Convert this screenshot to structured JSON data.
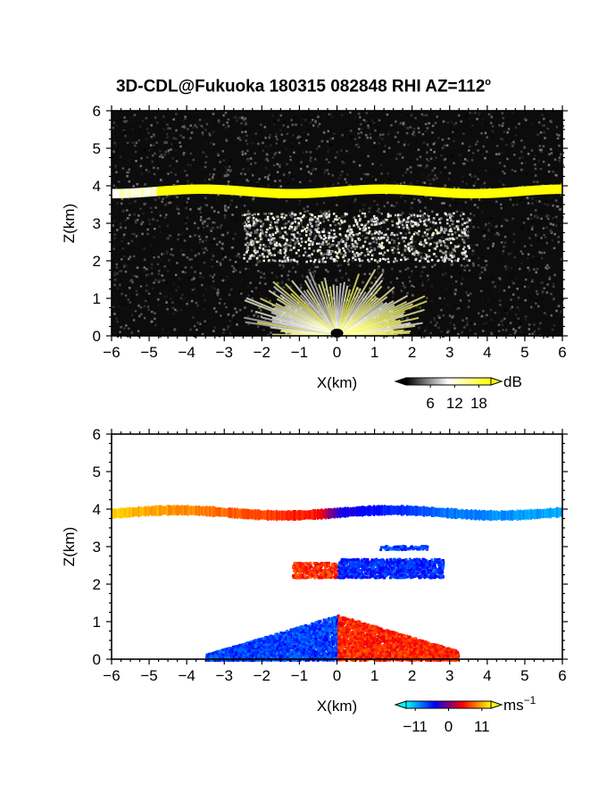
{
  "title": "3D-CDL@Fukuoka 180315 082848 RHI AZ=112",
  "title_superscript": "o",
  "chart_data": [
    {
      "type": "heatmap",
      "name": "reflectivity",
      "xlabel": "X(km)",
      "ylabel": "Z(km)",
      "xlim": [
        -6,
        6
      ],
      "ylim": [
        0,
        6
      ],
      "xticks": [
        "−6",
        "−5",
        "−4",
        "−3",
        "−2",
        "−1",
        "0",
        "1",
        "2",
        "3",
        "4",
        "5",
        "6"
      ],
      "yticks": [
        "0",
        "1",
        "2",
        "3",
        "4",
        "5",
        "6"
      ],
      "colorbar": {
        "unit": "dB",
        "ticks": [
          "6",
          "12",
          "18"
        ],
        "tick_values": [
          6,
          12,
          18
        ],
        "range": [
          0,
          21
        ],
        "colors": [
          "#000000",
          "#ffffff",
          "#ffff00"
        ]
      },
      "features": [
        {
          "kind": "cloud_layer",
          "x": [
            -6,
            6
          ],
          "z_center": 3.85,
          "thickness": 0.25,
          "strong_from_x": -4.8,
          "color": "#ffff00"
        },
        {
          "kind": "faint_layer",
          "x": [
            -2.5,
            3.5
          ],
          "z": [
            2.0,
            3.3
          ]
        },
        {
          "kind": "ground_clutter_fan",
          "origin": [
            0,
            0
          ],
          "radius_km": 3.5
        }
      ]
    },
    {
      "type": "heatmap",
      "name": "doppler_velocity",
      "xlabel": "X(km)",
      "ylabel": "Z(km)",
      "xlim": [
        -6,
        6
      ],
      "ylim": [
        0,
        6
      ],
      "xticks": [
        "−6",
        "−5",
        "−4",
        "−3",
        "−2",
        "−1",
        "0",
        "1",
        "2",
        "3",
        "4",
        "5",
        "6"
      ],
      "yticks": [
        "0",
        "1",
        "2",
        "3",
        "4",
        "5",
        "6"
      ],
      "colorbar": {
        "unit": "ms",
        "unit_superscript": "−1",
        "ticks": [
          "−11",
          "0",
          "11"
        ],
        "tick_values": [
          -11,
          0,
          11
        ],
        "range": [
          -14,
          14
        ],
        "colors": [
          "#00ffff",
          "#0000ff",
          "#ff0000",
          "#ffff00"
        ]
      },
      "features": [
        {
          "kind": "cloud_layer",
          "x": [
            -6,
            6
          ],
          "z_center": 3.9,
          "velocity_at_x": [
            [
              -6,
              12
            ],
            [
              -3.5,
              9
            ],
            [
              -0.5,
              5
            ],
            [
              0,
              -3
            ],
            [
              3,
              -9
            ],
            [
              6,
              -11
            ]
          ]
        },
        {
          "kind": "patch",
          "x": [
            -1.2,
            0
          ],
          "z": [
            2.2,
            2.6
          ],
          "velocity": 6
        },
        {
          "kind": "patch",
          "x": [
            0,
            2.8
          ],
          "z": [
            2.2,
            2.7
          ],
          "velocity": -6
        },
        {
          "kind": "patch",
          "x": [
            1.1,
            2.4
          ],
          "z": [
            2.95,
            3.05
          ],
          "velocity": -7
        },
        {
          "kind": "patch",
          "x": [
            -3.5,
            0
          ],
          "z": [
            0,
            1.2
          ],
          "velocity": -7
        },
        {
          "kind": "patch",
          "x": [
            0,
            3.2
          ],
          "z": [
            0,
            1.2
          ],
          "velocity": 6
        }
      ]
    }
  ]
}
